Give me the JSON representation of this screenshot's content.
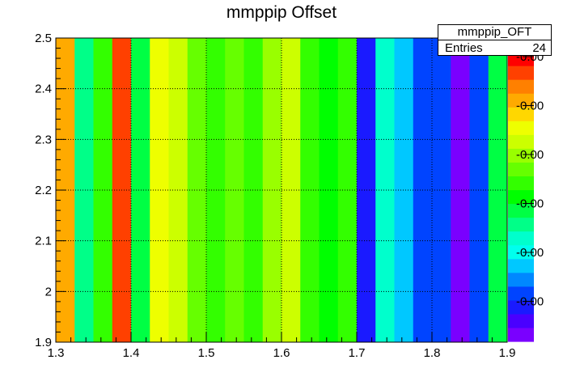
{
  "chart_data": {
    "type": "heatmap",
    "title": "mmppip Offset",
    "xlabel": "",
    "ylabel": "",
    "xlim": [
      1.3,
      1.9
    ],
    "ylim": [
      1.9,
      2.5
    ],
    "grid": true,
    "x_tick_labels": [
      "1.3",
      "1.4",
      "1.5",
      "1.6",
      "1.7",
      "1.8",
      "1.9"
    ],
    "y_tick_labels": [
      "1.9",
      "2",
      "2.1",
      "2.2",
      "2.3",
      "2.4",
      "2.5"
    ],
    "x_bin_edges": [
      1.3,
      1.325,
      1.35,
      1.375,
      1.4,
      1.425,
      1.45,
      1.475,
      1.5,
      1.525,
      1.55,
      1.575,
      1.6,
      1.625,
      1.65,
      1.675,
      1.7,
      1.725,
      1.75,
      1.775,
      1.8,
      1.825,
      1.85,
      1.875,
      1.9
    ],
    "bin_color_levels": [
      17,
      8,
      11,
      19,
      9,
      15,
      14,
      12,
      11,
      12,
      11,
      13,
      14,
      11,
      10,
      11,
      2,
      7,
      5,
      3,
      3,
      0,
      3,
      9
    ],
    "palette": [
      "#7a00ff",
      "#4a00ff",
      "#1a1aff",
      "#0044ff",
      "#0088ff",
      "#00c8ff",
      "#00ffee",
      "#00ffcc",
      "#00ff88",
      "#00ff44",
      "#00ff00",
      "#33ff00",
      "#66ff00",
      "#99ff00",
      "#ccff00",
      "#eeff00",
      "#ffd700",
      "#ffaa00",
      "#ff8000",
      "#ff4000",
      "#ff0000"
    ],
    "colorbar_tick_labels": [
      "-0.00",
      "-0.00",
      "-0.00",
      "-0.00",
      "-0.00",
      "-0.00"
    ]
  },
  "stats_box": {
    "name": "mmppip_OFT",
    "entries_label": "Entries",
    "entries_value": "24"
  }
}
